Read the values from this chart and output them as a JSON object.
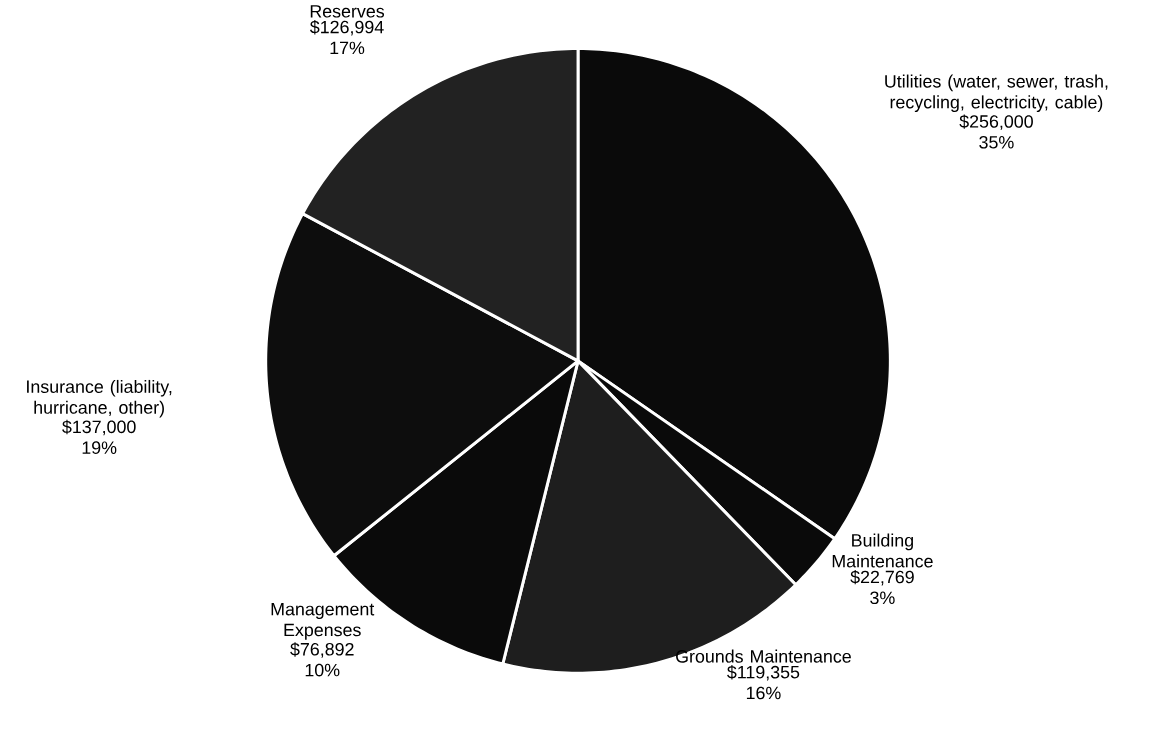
{
  "chart_data": {
    "type": "pie",
    "categories": [
      "Utilities (water, sewer, trash, recycling, electricity, cable)",
      "Building Maintenance",
      "Grounds Maintenance",
      "Management Expenses",
      "Insurance (liability, hurricane, other)",
      "Reserves"
    ],
    "values": [
      256000,
      22769,
      119355,
      76892,
      137000,
      126994
    ],
    "value_labels": [
      "$256,000 35%",
      "$22,769 3%",
      "$119,355 16%",
      "$76,892 10%",
      "$137,000 19%",
      "$126,994 17%"
    ],
    "colors": [
      "#0a0a0a",
      "#0a0a0a",
      "#1e1e1e",
      "#0a0a0a",
      "#0d0d0d",
      "#222222"
    ]
  }
}
